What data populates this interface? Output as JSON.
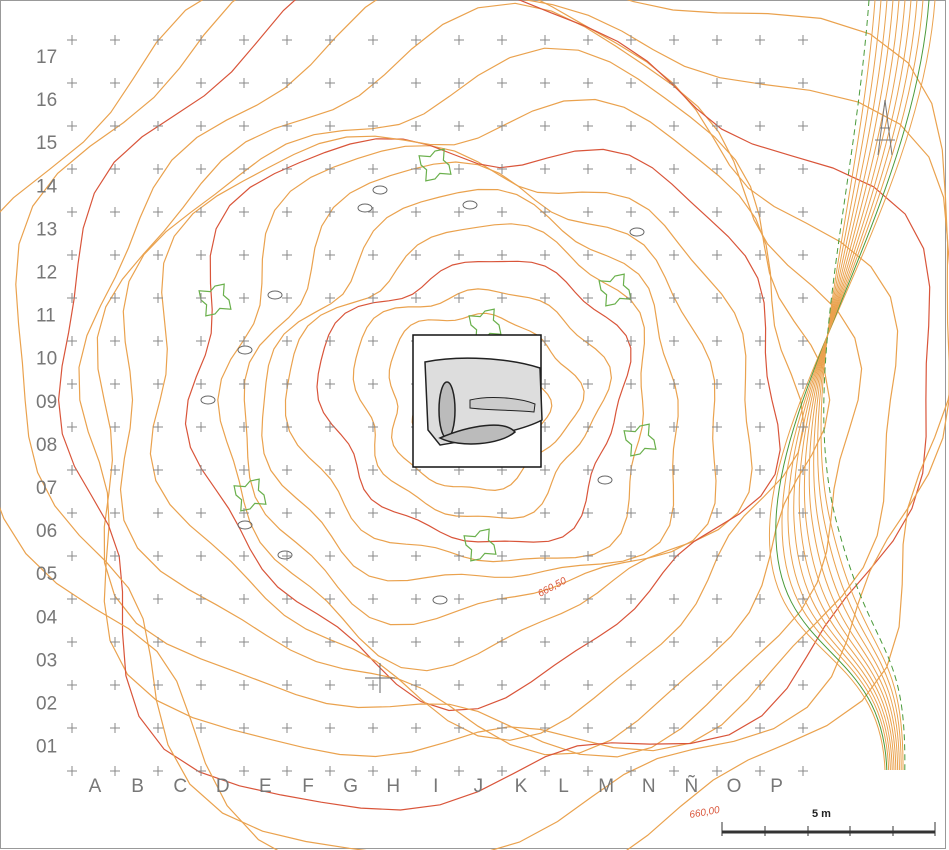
{
  "row_labels": [
    "17",
    "16",
    "15",
    "14",
    "13",
    "12",
    "11",
    "10",
    "09",
    "08",
    "07",
    "06",
    "05",
    "04",
    "03",
    "02",
    "01"
  ],
  "column_labels": [
    "A",
    "B",
    "C",
    "D",
    "E",
    "F",
    "G",
    "H",
    "I",
    "J",
    "K",
    "L",
    "M",
    "N",
    "Ñ",
    "O",
    "P"
  ],
  "contour_labels": [
    "660,50",
    "660,00"
  ],
  "scale": {
    "label": "5 m"
  }
}
